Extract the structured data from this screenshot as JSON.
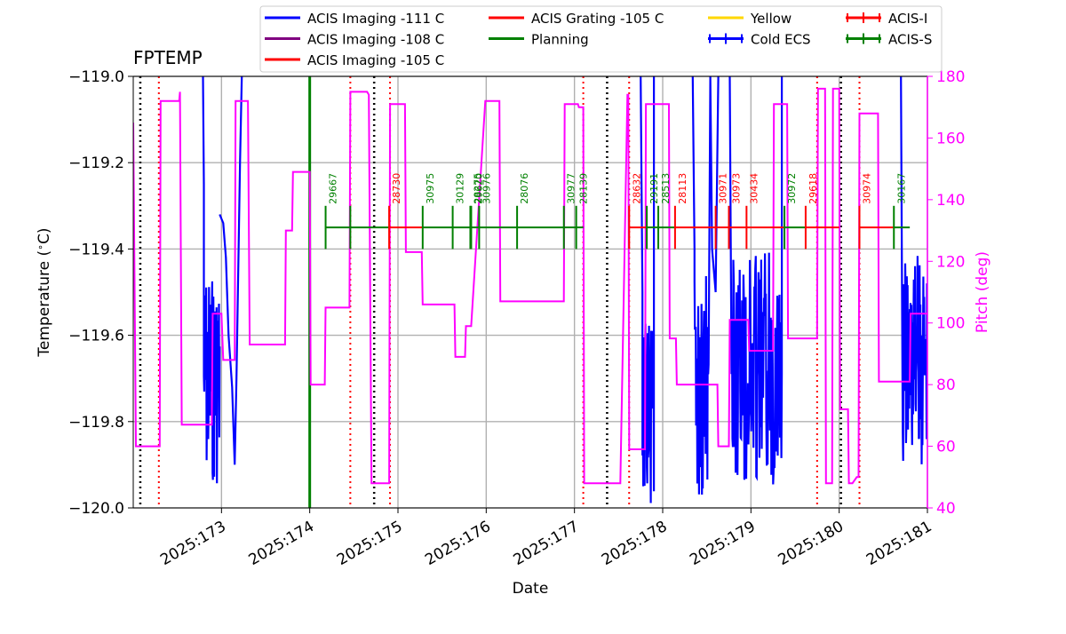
{
  "chart_data": {
    "type": "line",
    "title": "FPTEMP",
    "xlabel": "Date",
    "ylabel": "Temperature ($^\\circ$C)",
    "y2label": "Pitch (deg)",
    "xlim": [
      172.0,
      181.0
    ],
    "ylim": [
      -120.0,
      -119.0
    ],
    "y2lim": [
      40,
      180
    ],
    "x_ticks": [
      173,
      174,
      175,
      176,
      177,
      178,
      179,
      180,
      181
    ],
    "x_tick_labels": [
      "2025:173",
      "2025:174",
      "2025:175",
      "2025:176",
      "2025:177",
      "2025:178",
      "2025:179",
      "2025:180",
      "2025:181"
    ],
    "y_ticks": [
      -119.0,
      -119.2,
      -119.4,
      -119.6,
      -119.8,
      -120.0
    ],
    "y_tick_labels": [
      "−119.0",
      "−119.2",
      "−119.4",
      "−119.6",
      "−119.8",
      "−120.0"
    ],
    "y2_ticks": [
      40,
      60,
      80,
      100,
      120,
      140,
      160,
      180
    ],
    "y2_tick_labels": [
      "40",
      "60",
      "80",
      "100",
      "120",
      "140",
      "160",
      "180"
    ],
    "grid": true,
    "legend_position": "top",
    "colors": {
      "temp": "#0000ff",
      "pitch": "#ff00ff",
      "planning": "#008000",
      "acis_i": "#ff0000",
      "acis_s": "#008000",
      "yellow": "#ffd700",
      "purple": "#800080",
      "dotted_black": "#000000",
      "dotted_red": "#ff0000",
      "grid": "#b0b0b0"
    },
    "legend": [
      {
        "label": "ACIS Imaging -111 C",
        "color": "#0000ff",
        "kind": "line"
      },
      {
        "label": "ACIS Imaging -108 C",
        "color": "#800080",
        "kind": "line"
      },
      {
        "label": "ACIS Imaging -105 C",
        "color": "#ff0000",
        "kind": "line"
      },
      {
        "label": "ACIS Grating -105 C",
        "color": "#ff0000",
        "kind": "line"
      },
      {
        "label": "Planning",
        "color": "#008000",
        "kind": "line"
      },
      {
        "label": "Yellow",
        "color": "#ffd700",
        "kind": "line"
      },
      {
        "label": "Cold ECS",
        "color": "#0000ff",
        "kind": "errorbar"
      },
      {
        "label": "ACIS-I",
        "color": "#ff0000",
        "kind": "errorbar"
      },
      {
        "label": "ACIS-S",
        "color": "#008000",
        "kind": "errorbar"
      }
    ],
    "vlines_black_dotted": [
      172.08,
      174.73,
      177.37,
      180.02
    ],
    "vlines_red_dotted": [
      172.29,
      174.46,
      174.91,
      177.1,
      177.62,
      179.75,
      180.23
    ],
    "vline_green_solid": [
      174.0
    ],
    "obsid_segments": [
      {
        "start": 174.18,
        "end": 174.46,
        "obsid": "29667",
        "instrument": "ACIS-S"
      },
      {
        "start": 174.46,
        "end": 174.9,
        "obsid": "",
        "instrument": "ACIS-S"
      },
      {
        "start": 174.9,
        "end": 175.28,
        "obsid": "28730",
        "instrument": "ACIS-I"
      },
      {
        "start": 175.28,
        "end": 175.62,
        "obsid": "30975",
        "instrument": "ACIS-S"
      },
      {
        "start": 175.62,
        "end": 175.82,
        "obsid": "30129",
        "instrument": "ACIS-S"
      },
      {
        "start": 175.82,
        "end": 175.83,
        "obsid": "28275",
        "instrument": "ACIS-S"
      },
      {
        "start": 175.83,
        "end": 175.92,
        "obsid": "29620",
        "instrument": "ACIS-S"
      },
      {
        "start": 175.92,
        "end": 176.35,
        "obsid": "30976",
        "instrument": "ACIS-S"
      },
      {
        "start": 176.35,
        "end": 176.88,
        "obsid": "28076",
        "instrument": "ACIS-S"
      },
      {
        "start": 176.88,
        "end": 177.02,
        "obsid": "30977",
        "instrument": "ACIS-S"
      },
      {
        "start": 177.02,
        "end": 177.1,
        "obsid": "28139",
        "instrument": "ACIS-S"
      },
      {
        "start": 177.62,
        "end": 177.82,
        "obsid": "28632",
        "instrument": "ACIS-I"
      },
      {
        "start": 177.82,
        "end": 177.95,
        "obsid": "29191",
        "instrument": "ACIS-S"
      },
      {
        "start": 177.95,
        "end": 178.14,
        "obsid": "28513",
        "instrument": "ACIS-S"
      },
      {
        "start": 178.14,
        "end": 178.6,
        "obsid": "28113",
        "instrument": "ACIS-I"
      },
      {
        "start": 178.6,
        "end": 178.75,
        "obsid": "30971",
        "instrument": "ACIS-I"
      },
      {
        "start": 178.75,
        "end": 178.95,
        "obsid": "30973",
        "instrument": "ACIS-I"
      },
      {
        "start": 178.95,
        "end": 179.38,
        "obsid": "30434",
        "instrument": "ACIS-I"
      },
      {
        "start": 179.38,
        "end": 179.62,
        "obsid": "30972",
        "instrument": "ACIS-S"
      },
      {
        "start": 179.62,
        "end": 180.0,
        "obsid": "29618",
        "instrument": "ACIS-I"
      },
      {
        "start": 180.23,
        "end": 180.62,
        "obsid": "30974",
        "instrument": "ACIS-I"
      },
      {
        "start": 180.62,
        "end": 180.8,
        "obsid": "30167",
        "instrument": "ACIS-S"
      }
    ],
    "series": [
      {
        "key": "pitch",
        "axis": "y2",
        "x": [
          172.0,
          172.03,
          172.05,
          172.3,
          172.31,
          172.5,
          172.52,
          172.53,
          172.55,
          172.88,
          172.89,
          172.9,
          172.91,
          172.99,
          173.0,
          173.02,
          173.05,
          173.15,
          173.16,
          173.18,
          173.3,
          173.32,
          173.33,
          173.72,
          173.73,
          173.8,
          173.81,
          173.82,
          174.0,
          174.01,
          174.02,
          174.17,
          174.18,
          174.45,
          174.46,
          174.65,
          174.67,
          174.7,
          174.9,
          174.91,
          175.08,
          175.09,
          175.27,
          175.28,
          175.64,
          175.65,
          175.76,
          175.77,
          175.82,
          175.83,
          175.99,
          176.0,
          176.15,
          176.16,
          176.88,
          176.89,
          177.04,
          177.05,
          177.1,
          177.11,
          177.15,
          177.2,
          177.3,
          177.31,
          177.4,
          177.5,
          177.52,
          177.6,
          177.61,
          177.62,
          177.8,
          177.81,
          178.07,
          178.08,
          178.15,
          178.16,
          178.45,
          178.46,
          178.5,
          178.62,
          178.63,
          178.75,
          178.76,
          178.97,
          178.98,
          179.25,
          179.26,
          179.41,
          179.42,
          179.75,
          179.76,
          179.84,
          179.85,
          179.92,
          179.93,
          180.0,
          180.01,
          180.1,
          180.11,
          180.15,
          180.2,
          180.22,
          180.23,
          180.44,
          180.45,
          180.8,
          180.81,
          180.85,
          180.86,
          181.0
        ],
        "y": [
          165,
          60,
          60,
          60,
          172,
          172,
          172,
          175,
          67,
          67,
          67,
          103,
          103,
          103,
          103,
          88,
          88,
          88,
          172,
          172,
          172,
          93,
          93,
          93,
          130,
          130,
          149,
          149,
          149,
          80,
          80,
          80,
          105,
          105,
          175,
          175,
          174,
          48,
          48,
          171,
          171,
          123,
          123,
          106,
          106,
          89,
          89,
          99,
          99,
          99,
          172,
          172,
          172,
          107,
          107,
          171,
          171,
          170,
          170,
          48,
          48,
          48,
          48,
          48,
          48,
          48,
          48,
          174,
          174,
          59,
          59,
          171,
          171,
          95,
          95,
          80,
          80,
          80,
          80,
          80,
          60,
          60,
          101,
          101,
          91,
          91,
          171,
          171,
          95,
          95,
          176,
          176,
          48,
          48,
          176,
          176,
          72,
          72,
          48,
          48,
          50,
          50,
          168,
          168,
          81,
          81,
          103,
          103,
          103,
          103
        ]
      }
    ]
  }
}
